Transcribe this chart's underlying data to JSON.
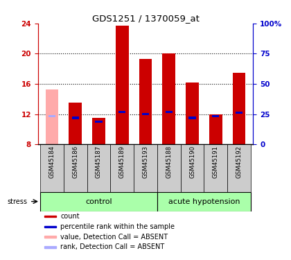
{
  "title": "GDS1251 / 1370059_at",
  "samples": [
    "GSM45184",
    "GSM45186",
    "GSM45187",
    "GSM45189",
    "GSM45193",
    "GSM45188",
    "GSM45190",
    "GSM45191",
    "GSM45192"
  ],
  "count_values": [
    null,
    13.5,
    11.5,
    23.7,
    19.3,
    20.0,
    16.2,
    12.0,
    17.5
  ],
  "absent_value": 15.3,
  "rank_values": [
    null,
    11.5,
    11.0,
    12.3,
    12.0,
    12.3,
    11.5,
    11.7,
    12.2
  ],
  "absent_rank": 11.7,
  "ylim": [
    8,
    24
  ],
  "yticks": [
    8,
    12,
    16,
    20,
    24
  ],
  "right_yticks": [
    0,
    25,
    50,
    75,
    100
  ],
  "right_ylim": [
    0,
    100
  ],
  "bar_color_red": "#cc0000",
  "bar_color_pink": "#ffaaaa",
  "bar_color_blue": "#0000cc",
  "bar_color_lightblue": "#aaaaff",
  "bar_width": 0.55,
  "axis_label_color_left": "#cc0000",
  "axis_label_color_right": "#0000cc",
  "legend_items": [
    "count",
    "percentile rank within the sample",
    "value, Detection Call = ABSENT",
    "rank, Detection Call = ABSENT"
  ],
  "legend_colors": [
    "#cc0000",
    "#0000cc",
    "#ffaaaa",
    "#aaaaff"
  ],
  "group_label_control": "control",
  "group_label_hypotension": "acute hypotension",
  "stress_label": "stress",
  "group_bg_color": "#aaffaa",
  "sample_bg_color": "#cccccc",
  "n_control": 5,
  "n_hypotension": 4
}
